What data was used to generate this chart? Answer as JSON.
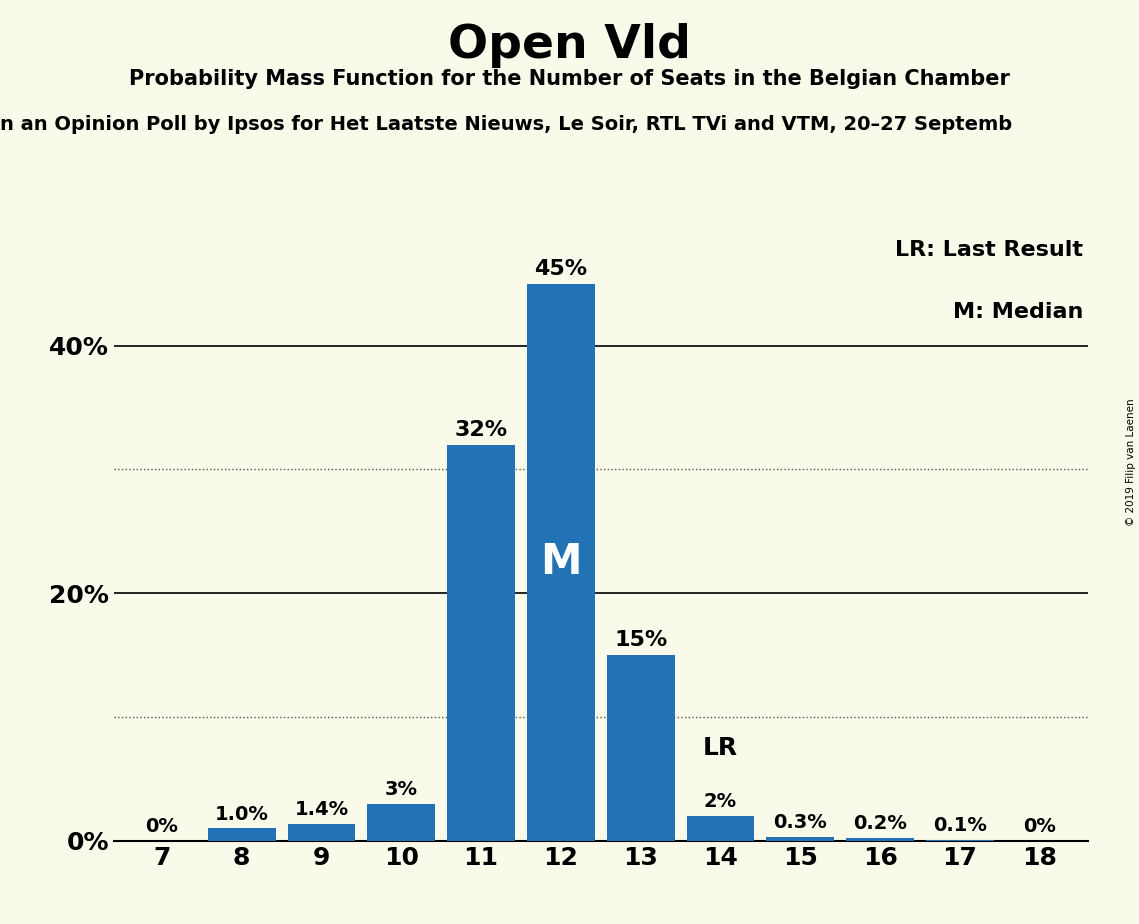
{
  "title": "Open Vld",
  "subtitle": "Probability Mass Function for the Number of Seats in the Belgian Chamber",
  "subtitle2": "n an Opinion Poll by Ipsos for Het Laatste Nieuws, Le Soir, RTL TVi and VTM, 20–27 Septemb",
  "copyright_text": "© 2019 Filip van Laenen",
  "categories": [
    7,
    8,
    9,
    10,
    11,
    12,
    13,
    14,
    15,
    16,
    17,
    18
  ],
  "values": [
    0.0,
    1.0,
    1.4,
    3.0,
    32.0,
    45.0,
    15.0,
    2.0,
    0.3,
    0.2,
    0.1,
    0.0
  ],
  "bar_color": "#2272b5",
  "bar_labels": [
    "0%",
    "1.0%",
    "1.4%",
    "3%",
    "32%",
    "45%",
    "15%",
    "2%",
    "0.3%",
    "0.2%",
    "0.1%",
    "0%"
  ],
  "median_seat": 12,
  "lr_seat": 14,
  "background_color": "#fafaeb",
  "yticks": [
    0,
    20,
    40
  ],
  "dotted_gridlines": [
    10,
    30
  ],
  "solid_gridlines": [
    20,
    40
  ],
  "ylim": [
    0,
    50
  ],
  "legend_text_lr": "LR: Last Result",
  "legend_text_m": "M: Median"
}
